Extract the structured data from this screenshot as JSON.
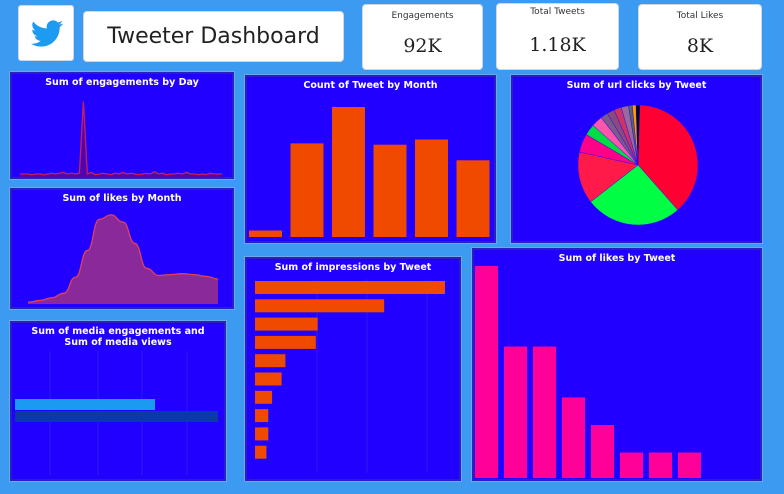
{
  "header": {
    "logo_icon": "twitter-bird-icon",
    "title": "Tweeter Dashboard"
  },
  "kpis": [
    {
      "label": "Engagements",
      "value": "92K"
    },
    {
      "label": "Total Tweets",
      "value": "1.18K"
    },
    {
      "label": "Total Likes",
      "value": "8K"
    }
  ],
  "colors": {
    "panel_bg": "#2200ff",
    "background": "#3c9bf0",
    "bar_orange": "#f04a00",
    "line_pink": "#c8205a",
    "bar_magenta": "#ff0099",
    "media_light": "#1a9af0",
    "media_dark": "#0a3aa8"
  },
  "chart_data": [
    {
      "id": "engagements_by_day",
      "type": "line",
      "title": "Sum of engagements by Day",
      "values": [
        4,
        4,
        4,
        3,
        4,
        4,
        3,
        4,
        5,
        4,
        5,
        6,
        4,
        5,
        4,
        5,
        100,
        4,
        6,
        3,
        4,
        5,
        4,
        3,
        5,
        4,
        6,
        4,
        5,
        4,
        3,
        4,
        5,
        4,
        7,
        4,
        5,
        3,
        4,
        4,
        5,
        4,
        6,
        4,
        4,
        3,
        4,
        3,
        5,
        4,
        4,
        4
      ],
      "ylim": [
        0,
        110
      ]
    },
    {
      "id": "likes_by_month",
      "type": "area",
      "title": "Sum of likes by Month",
      "values": [
        2,
        4,
        7,
        12,
        30,
        60,
        95,
        100,
        92,
        68,
        40,
        32,
        33,
        34,
        33,
        31,
        28
      ],
      "ylim": [
        0,
        110
      ]
    },
    {
      "id": "media_engagements_views",
      "type": "bar",
      "orientation": "horizontal",
      "title": "Sum of media engagements and Sum of media views",
      "series": [
        {
          "values": [
            69
          ]
        },
        {
          "values": [
            100
          ]
        }
      ],
      "xlim": [
        0,
        100
      ]
    },
    {
      "id": "tweets_by_month",
      "type": "bar",
      "title": "Count of Tweet by Month",
      "values": [
        5,
        72,
        100,
        71,
        75,
        59
      ],
      "ylim": [
        0,
        100
      ]
    },
    {
      "id": "impressions_by_tweet",
      "type": "bar",
      "orientation": "horizontal",
      "title": "Sum of impressions by Tweet",
      "values": [
        100,
        68,
        33,
        32,
        16,
        14,
        9,
        7,
        7,
        6
      ],
      "xlim": [
        0,
        100
      ]
    },
    {
      "id": "url_clicks_by_tweet",
      "type": "pie",
      "title": "Sum of url clicks by Tweet",
      "values": [
        38,
        26,
        14,
        5,
        3,
        3,
        2,
        2,
        2,
        2,
        1,
        1,
        1
      ],
      "colors": [
        "#ff0033",
        "#00ff44",
        "#ff1a4a",
        "#ff0088",
        "#00dd44",
        "#ff55aa",
        "#7a5a8a",
        "#8a4a7a",
        "#cc3366",
        "#9a6a9a",
        "#556666",
        "#ff9900",
        "#000000"
      ]
    },
    {
      "id": "likes_by_tweet",
      "type": "bar",
      "title": "Sum of likes by Tweet",
      "values": [
        100,
        62,
        62,
        38,
        25,
        12,
        12,
        12
      ],
      "ylim": [
        0,
        100
      ]
    }
  ]
}
